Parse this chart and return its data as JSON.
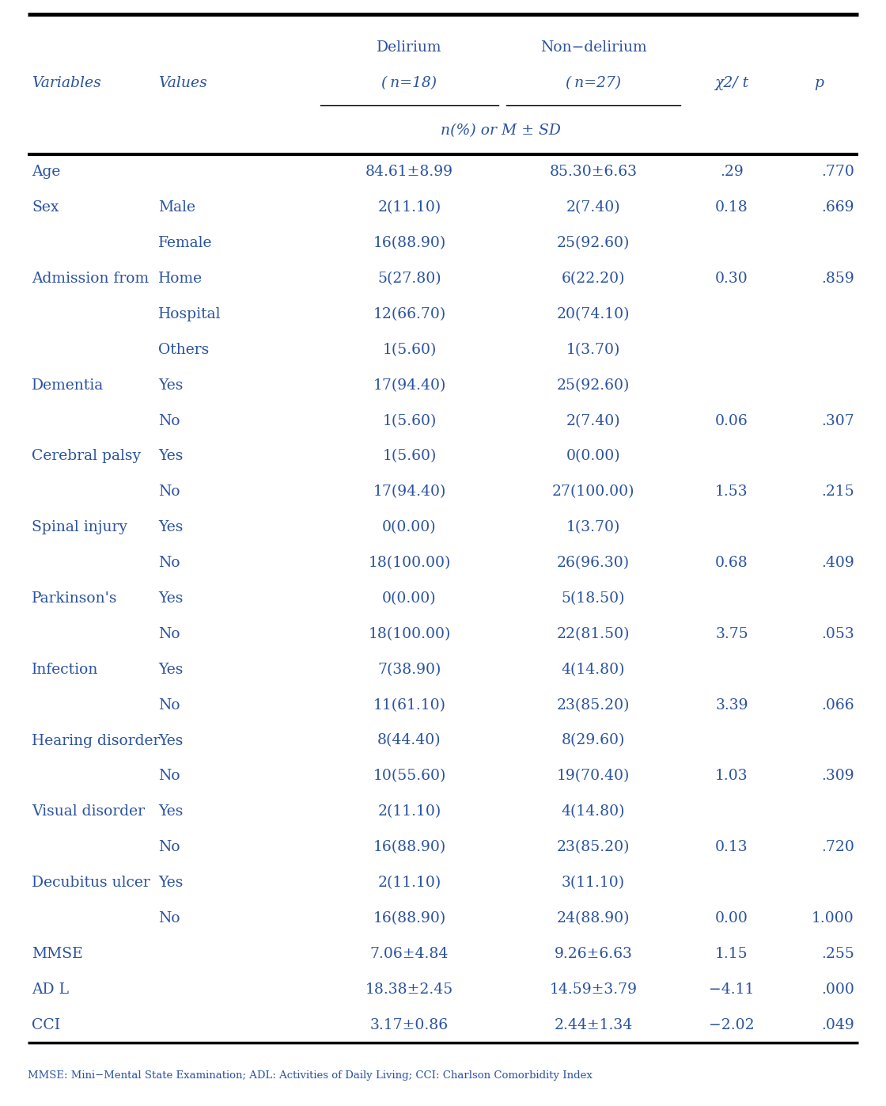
{
  "footer": "MMSE: Mini−Mental State Examination; ADL: Activities of Daily Living; CCI: Charlson Comorbidity Index",
  "rows": [
    [
      "Age",
      "",
      "84.61±8.99",
      "85.30±6.63",
      ".29",
      ".770"
    ],
    [
      "Sex",
      "Male",
      "2(11.10)",
      "2(7.40)",
      "0.18",
      ".669"
    ],
    [
      "",
      "Female",
      "16(88.90)",
      "25(92.60)",
      "",
      ""
    ],
    [
      "Admission from",
      "Home",
      "5(27.80)",
      "6(22.20)",
      "0.30",
      ".859"
    ],
    [
      "",
      "Hospital",
      "12(66.70)",
      "20(74.10)",
      "",
      ""
    ],
    [
      "",
      "Others",
      "1(5.60)",
      "1(3.70)",
      "",
      ""
    ],
    [
      "Dementia",
      "Yes",
      "17(94.40)",
      "25(92.60)",
      "",
      ""
    ],
    [
      "",
      "No",
      "1(5.60)",
      "2(7.40)",
      "0.06",
      ".307"
    ],
    [
      "Cerebral palsy",
      "Yes",
      "1(5.60)",
      "0(0.00)",
      "",
      ""
    ],
    [
      "",
      "No",
      "17(94.40)",
      "27(100.00)",
      "1.53",
      ".215"
    ],
    [
      "Spinal injury",
      "Yes",
      "0(0.00)",
      "1(3.70)",
      "",
      ""
    ],
    [
      "",
      "No",
      "18(100.00)",
      "26(96.30)",
      "0.68",
      ".409"
    ],
    [
      "Parkinson's",
      "Yes",
      "0(0.00)",
      "5(18.50)",
      "",
      ""
    ],
    [
      "",
      "No",
      "18(100.00)",
      "22(81.50)",
      "3.75",
      ".053"
    ],
    [
      "Infection",
      "Yes",
      "7(38.90)",
      "4(14.80)",
      "",
      ""
    ],
    [
      "",
      "No",
      "11(61.10)",
      "23(85.20)",
      "3.39",
      ".066"
    ],
    [
      "Hearing disorder",
      "Yes",
      "8(44.40)",
      "8(29.60)",
      "",
      ""
    ],
    [
      "",
      "No",
      "10(55.60)",
      "19(70.40)",
      "1.03",
      ".309"
    ],
    [
      "Visual disorder",
      "Yes",
      "2(11.10)",
      "4(14.80)",
      "",
      ""
    ],
    [
      "",
      "No",
      "16(88.90)",
      "23(85.20)",
      "0.13",
      ".720"
    ],
    [
      "Decubitus ulcer",
      "Yes",
      "2(11.10)",
      "3(11.10)",
      "",
      ""
    ],
    [
      "",
      "No",
      "16(88.90)",
      "24(88.90)",
      "0.00",
      "1.000"
    ],
    [
      "MMSE",
      "",
      "7.06±4.84",
      "9.26±6.63",
      "1.15",
      ".255"
    ],
    [
      "AD L",
      "",
      "18.38±2.45",
      "14.59±3.79",
      "−4.11",
      ".000"
    ],
    [
      "CCI",
      "",
      "3.17±0.86",
      "2.44±1.34",
      "−2.02",
      ".049"
    ]
  ],
  "text_color": "#2a52a0",
  "line_color": "#000000",
  "bg_color": "#ffffff",
  "font_size": 13.5,
  "small_font_size": 9.5,
  "header_font_size": 13.5
}
